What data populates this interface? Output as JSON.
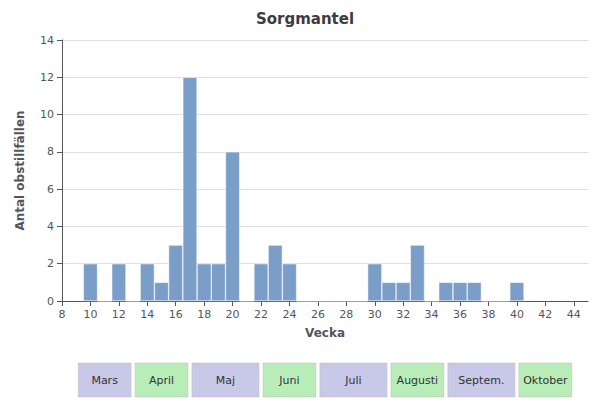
{
  "chart_data": {
    "type": "bar",
    "title": "Sorgmantel",
    "xlabel": "Vecka",
    "ylabel": "Antal obstillfällen",
    "color": "#7B9EC9",
    "x": [
      10,
      11,
      12,
      13,
      14,
      15,
      16,
      17,
      18,
      19,
      20,
      21,
      22,
      23,
      24,
      25,
      26,
      27,
      28,
      29,
      30,
      31,
      32,
      33,
      34,
      35,
      36,
      37,
      38,
      39,
      40
    ],
    "values": [
      2,
      0,
      2,
      0,
      2,
      1,
      3,
      12,
      2,
      2,
      8,
      0,
      2,
      3,
      2,
      0,
      0,
      0,
      0,
      0,
      2,
      1,
      1,
      3,
      0,
      1,
      1,
      1,
      0,
      0,
      1
    ],
    "xlim": [
      8,
      45
    ],
    "xticks": [
      8,
      10,
      12,
      14,
      16,
      18,
      20,
      22,
      24,
      26,
      28,
      30,
      32,
      34,
      36,
      38,
      40,
      42,
      44
    ],
    "ylim": [
      0,
      14
    ],
    "yticks": [
      0,
      2,
      4,
      6,
      8,
      10,
      12,
      14
    ],
    "grid": true,
    "month_bands": [
      {
        "label": "Mars",
        "start": 9,
        "end": 13,
        "color": "#C8C8E8"
      },
      {
        "label": "April",
        "start": 13,
        "end": 17,
        "color": "#B8EDB8"
      },
      {
        "label": "Maj",
        "start": 17,
        "end": 22,
        "color": "#C8C8E8"
      },
      {
        "label": "Juni",
        "start": 22,
        "end": 26,
        "color": "#B8EDB8"
      },
      {
        "label": "Juli",
        "start": 26,
        "end": 31,
        "color": "#C8C8E8"
      },
      {
        "label": "Augusti",
        "start": 31,
        "end": 35,
        "color": "#B8EDB8"
      },
      {
        "label": "Septem.",
        "start": 35,
        "end": 40,
        "color": "#C8C8E8"
      },
      {
        "label": "Oktober",
        "start": 40,
        "end": 44,
        "color": "#B8EDB8"
      }
    ]
  }
}
